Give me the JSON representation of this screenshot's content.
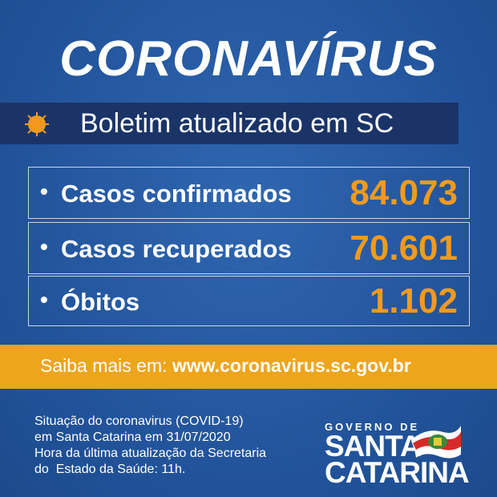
{
  "title": "CORONAVÍRUS",
  "banner": {
    "text": "Boletim atualizado em SC",
    "icon": "virus-icon"
  },
  "stats": [
    {
      "label": "Casos confirmados",
      "value": "84.073"
    },
    {
      "label": "Casos recuperados",
      "value": "70.601"
    },
    {
      "label": "Óbitos",
      "value": "1.102"
    }
  ],
  "bullet": "•",
  "more": {
    "prefix": "Saiba mais em:",
    "url": "www.coronavirus.sc.gov.br"
  },
  "footer": [
    "Situação do coronavirus (COVID-19)",
    "em Santa Catarina em 31/07/2020",
    "Hora da última atualização da Secretaria",
    "do  Estado da Saúde: 11h."
  ],
  "logo": {
    "line1": "GOVERNO DE",
    "line2": "SANTA",
    "line3": "CATARINA"
  },
  "colors": {
    "background": "#23559d",
    "banner": "#1a3468",
    "accent": "#f39a1e",
    "bar": "#eda51c"
  }
}
